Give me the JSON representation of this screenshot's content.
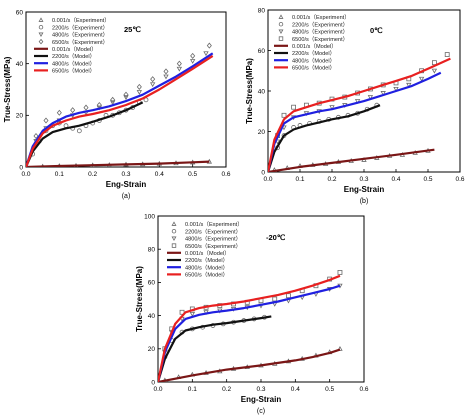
{
  "chart_data": [
    {
      "type": "line",
      "panel_label": "(a)",
      "temperature_label": "25℃",
      "xlabel": "Eng-Strain",
      "ylabel": "True-Stress(MPa)",
      "xlim": [
        0.0,
        0.6
      ],
      "ylim": [
        0,
        60
      ],
      "xticks": [
        "0.0",
        "0.1",
        "0.2",
        "0.3",
        "0.4",
        "0.5",
        "0.6"
      ],
      "yticks": [
        "0",
        "20",
        "40",
        "60"
      ],
      "legend": "top-left",
      "series": [
        {
          "name": "0.001/s（Experiment）",
          "kind": "experiment",
          "marker": "triangle-up",
          "color": "#6a6a6a",
          "x": [
            0.0,
            0.05,
            0.1,
            0.15,
            0.2,
            0.25,
            0.3,
            0.35,
            0.4,
            0.45,
            0.5,
            0.55
          ],
          "y": [
            0.0,
            0.2,
            0.4,
            0.5,
            0.7,
            0.8,
            1.0,
            1.1,
            1.3,
            1.5,
            1.8,
            2.1
          ]
        },
        {
          "name": "2200/s（Experiment）",
          "kind": "experiment",
          "marker": "circle",
          "color": "#6a6a6a",
          "x": [
            0.02,
            0.04,
            0.06,
            0.08,
            0.1,
            0.12,
            0.14,
            0.16,
            0.18,
            0.2,
            0.22,
            0.24,
            0.26,
            0.28,
            0.3,
            0.32,
            0.34,
            0.36
          ],
          "y": [
            5,
            10,
            14,
            16,
            17,
            16,
            15,
            14,
            16,
            17,
            18,
            20,
            20,
            21,
            22,
            23,
            25,
            26
          ]
        },
        {
          "name": "4800/s（Experiment）",
          "kind": "experiment",
          "marker": "triangle-down",
          "color": "#6a6a6a",
          "x": [
            0.03,
            0.06,
            0.1,
            0.14,
            0.18,
            0.22,
            0.26,
            0.3,
            0.34,
            0.38,
            0.42,
            0.46,
            0.5,
            0.54
          ],
          "y": [
            10,
            15,
            18,
            20,
            21,
            23,
            25,
            27,
            29,
            32,
            35,
            38,
            41,
            44
          ]
        },
        {
          "name": "6500/s（Experiment）",
          "kind": "experiment",
          "marker": "diamond",
          "color": "#6a6a6a",
          "x": [
            0.03,
            0.06,
            0.1,
            0.14,
            0.18,
            0.22,
            0.26,
            0.3,
            0.34,
            0.38,
            0.42,
            0.46,
            0.5,
            0.55
          ],
          "y": [
            12,
            18,
            21,
            22,
            23,
            24,
            26,
            28,
            31,
            34,
            37,
            40,
            43,
            47
          ]
        },
        {
          "name": "0.001/s（Model）",
          "kind": "model",
          "color": "#7a1616",
          "x": [
            0.0,
            0.1,
            0.2,
            0.3,
            0.4,
            0.5,
            0.55
          ],
          "y": [
            0.0,
            0.4,
            0.7,
            1.0,
            1.3,
            1.8,
            2.1
          ]
        },
        {
          "name": "2200/s（Model）",
          "kind": "model",
          "color": "#111111",
          "x": [
            0.0,
            0.02,
            0.05,
            0.08,
            0.12,
            0.16,
            0.2,
            0.25,
            0.3,
            0.35
          ],
          "y": [
            0,
            6,
            11,
            13.5,
            15,
            16,
            17.5,
            19.5,
            22,
            25
          ]
        },
        {
          "name": "4800/s（Model）",
          "kind": "model",
          "color": "#2020e0",
          "x": [
            0.0,
            0.02,
            0.05,
            0.08,
            0.12,
            0.16,
            0.2,
            0.25,
            0.3,
            0.35,
            0.4,
            0.45,
            0.5,
            0.56
          ],
          "y": [
            0,
            8,
            14,
            17,
            19.5,
            21,
            22,
            23.5,
            25.5,
            28,
            31.5,
            35,
            39,
            44
          ]
        },
        {
          "name": "6500/s（Model）",
          "kind": "model",
          "color": "#e82020",
          "x": [
            0.0,
            0.02,
            0.05,
            0.08,
            0.12,
            0.16,
            0.2,
            0.25,
            0.3,
            0.35,
            0.4,
            0.45,
            0.5,
            0.56
          ],
          "y": [
            0,
            7,
            13,
            16,
            18,
            19.5,
            20.5,
            22,
            24,
            26.5,
            30,
            34,
            38,
            43
          ]
        }
      ]
    },
    {
      "type": "line",
      "panel_label": "(b)",
      "temperature_label": "0℃",
      "xlabel": "Eng-Strain",
      "ylabel": "True-Stress(MPa)",
      "xlim": [
        0.0,
        0.6
      ],
      "ylim": [
        0,
        80
      ],
      "xticks": [
        "0.0",
        "0.1",
        "0.2",
        "0.3",
        "0.4",
        "0.5",
        "0.6"
      ],
      "yticks": [
        "0",
        "20",
        "40",
        "60",
        "80"
      ],
      "legend": "top-left",
      "series": [
        {
          "name": "0.001/s（Experiment）",
          "kind": "experiment",
          "marker": "triangle-up",
          "color": "#6a6a6a",
          "x": [
            0.02,
            0.06,
            0.1,
            0.14,
            0.18,
            0.22,
            0.26,
            0.3,
            0.34,
            0.38,
            0.42,
            0.46,
            0.5
          ],
          "y": [
            1,
            2,
            3,
            3.5,
            4,
            5,
            5.5,
            6,
            7,
            8,
            8.5,
            9.5,
            10.5
          ]
        },
        {
          "name": "2200/s（Experiment）",
          "kind": "experiment",
          "marker": "circle",
          "color": "#6a6a6a",
          "x": [
            0.03,
            0.05,
            0.08,
            0.1,
            0.13,
            0.16,
            0.19,
            0.22,
            0.25,
            0.28,
            0.31,
            0.34
          ],
          "y": [
            12,
            18,
            22,
            23,
            24,
            25,
            26,
            27,
            28,
            29,
            31,
            33
          ]
        },
        {
          "name": "4800/s（Experiment）",
          "kind": "experiment",
          "marker": "triangle-down",
          "color": "#6a6a6a",
          "x": [
            0.03,
            0.05,
            0.08,
            0.12,
            0.16,
            0.2,
            0.24,
            0.28,
            0.32,
            0.36,
            0.4,
            0.44,
            0.48,
            0.52
          ],
          "y": [
            15,
            22,
            27,
            29,
            30,
            32,
            33,
            35,
            37,
            39,
            41,
            43,
            46,
            50
          ]
        },
        {
          "name": "6500/s（Experiment）",
          "kind": "experiment",
          "marker": "square",
          "color": "#6a6a6a",
          "x": [
            0.03,
            0.05,
            0.08,
            0.12,
            0.16,
            0.2,
            0.24,
            0.28,
            0.32,
            0.36,
            0.4,
            0.44,
            0.48,
            0.52,
            0.56
          ],
          "y": [
            18,
            28,
            32,
            33,
            34,
            36,
            37,
            39,
            41,
            43,
            44,
            46,
            50,
            54,
            58
          ]
        },
        {
          "name": "0.001/s（Model）",
          "kind": "model",
          "color": "#7a1616",
          "x": [
            0.0,
            0.1,
            0.2,
            0.3,
            0.4,
            0.52
          ],
          "y": [
            0,
            2.5,
            4.5,
            6.5,
            8.5,
            11
          ]
        },
        {
          "name": "2200/s（Model）",
          "kind": "model",
          "color": "#111111",
          "x": [
            0.0,
            0.02,
            0.05,
            0.08,
            0.12,
            0.16,
            0.2,
            0.25,
            0.3,
            0.35
          ],
          "y": [
            0,
            10,
            18,
            21,
            23,
            24.5,
            26,
            27.5,
            30,
            33
          ]
        },
        {
          "name": "4800/s（Model）",
          "kind": "model",
          "color": "#2020e0",
          "x": [
            0.0,
            0.02,
            0.05,
            0.08,
            0.12,
            0.16,
            0.2,
            0.25,
            0.3,
            0.35,
            0.4,
            0.45,
            0.5,
            0.54
          ],
          "y": [
            0,
            14,
            24,
            27,
            28.5,
            30,
            31,
            33,
            35,
            37.5,
            40,
            42.5,
            46,
            49
          ]
        },
        {
          "name": "6500/s（Model）",
          "kind": "model",
          "color": "#e82020",
          "x": [
            0.0,
            0.02,
            0.05,
            0.08,
            0.12,
            0.16,
            0.2,
            0.25,
            0.3,
            0.35,
            0.4,
            0.45,
            0.5,
            0.57
          ],
          "y": [
            0,
            16,
            26,
            30,
            32,
            34,
            35.5,
            37.5,
            40,
            42.5,
            45,
            47.5,
            51,
            56
          ]
        }
      ]
    },
    {
      "type": "line",
      "panel_label": "(c)",
      "temperature_label": "-20℃",
      "xlabel": "Eng-Strain",
      "ylabel": "True-Stress(MPa)",
      "xlim": [
        0.0,
        0.6
      ],
      "ylim": [
        0,
        100
      ],
      "xticks": [
        "0.0",
        "0.1",
        "0.2",
        "0.3",
        "0.4",
        "0.5",
        "0.6"
      ],
      "yticks": [
        "0",
        "20",
        "40",
        "60",
        "80",
        "100"
      ],
      "legend": "top-left",
      "series": [
        {
          "name": "0.001/s（Experiment）",
          "kind": "experiment",
          "marker": "triangle-up",
          "color": "#6a6a6a",
          "x": [
            0.02,
            0.06,
            0.1,
            0.14,
            0.18,
            0.22,
            0.26,
            0.3,
            0.34,
            0.38,
            0.42,
            0.46,
            0.5,
            0.53
          ],
          "y": [
            1,
            3,
            4.5,
            5.5,
            6.5,
            8,
            9,
            10,
            11,
            12.5,
            14,
            16,
            18,
            20
          ]
        },
        {
          "name": "2200/s（Experiment）",
          "kind": "experiment",
          "marker": "circle",
          "color": "#6a6a6a",
          "x": [
            0.02,
            0.04,
            0.07,
            0.1,
            0.13,
            0.16,
            0.19,
            0.22,
            0.25,
            0.28,
            0.31
          ],
          "y": [
            15,
            25,
            30,
            32,
            33,
            34,
            35,
            36,
            37,
            38,
            39
          ]
        },
        {
          "name": "4800/s（Experiment）",
          "kind": "experiment",
          "marker": "triangle-down",
          "color": "#6a6a6a",
          "x": [
            0.02,
            0.04,
            0.07,
            0.1,
            0.14,
            0.18,
            0.22,
            0.26,
            0.3,
            0.34,
            0.38,
            0.42,
            0.46,
            0.5,
            0.53
          ],
          "y": [
            18,
            30,
            38,
            41,
            42,
            43,
            44,
            45,
            46,
            47,
            49,
            51,
            53,
            56,
            58
          ]
        },
        {
          "name": "6500/s（Experiment）",
          "kind": "experiment",
          "marker": "square",
          "color": "#6a6a6a",
          "x": [
            0.02,
            0.04,
            0.07,
            0.1,
            0.14,
            0.18,
            0.22,
            0.26,
            0.3,
            0.34,
            0.38,
            0.42,
            0.46,
            0.5,
            0.53
          ],
          "y": [
            20,
            32,
            42,
            44,
            45,
            46,
            47,
            48,
            49,
            50,
            52,
            55,
            58,
            62,
            66
          ]
        },
        {
          "name": "0.001/s（Model）",
          "kind": "model",
          "color": "#7a1616",
          "x": [
            0.0,
            0.1,
            0.2,
            0.3,
            0.4,
            0.45,
            0.5,
            0.53
          ],
          "y": [
            0,
            4,
            7.5,
            10,
            13,
            15,
            17.5,
            19.5
          ]
        },
        {
          "name": "2200/s（Model）",
          "kind": "model",
          "color": "#111111",
          "x": [
            0.0,
            0.02,
            0.05,
            0.08,
            0.12,
            0.16,
            0.2,
            0.25,
            0.3,
            0.33
          ],
          "y": [
            0,
            14,
            26,
            31,
            33,
            34.5,
            35.5,
            37,
            38.5,
            39.5
          ]
        },
        {
          "name": "4800/s（Model）",
          "kind": "model",
          "color": "#2020e0",
          "x": [
            0.0,
            0.02,
            0.05,
            0.08,
            0.12,
            0.16,
            0.2,
            0.25,
            0.3,
            0.35,
            0.4,
            0.45,
            0.5,
            0.53
          ],
          "y": [
            0,
            18,
            32,
            38,
            40.5,
            42,
            43,
            44.5,
            46.5,
            48.5,
            51,
            53.5,
            56,
            58
          ]
        },
        {
          "name": "6500/s（Model）",
          "kind": "model",
          "color": "#e82020",
          "x": [
            0.0,
            0.02,
            0.05,
            0.08,
            0.12,
            0.16,
            0.2,
            0.25,
            0.3,
            0.35,
            0.4,
            0.45,
            0.5,
            0.53
          ],
          "y": [
            0,
            20,
            35,
            42,
            44.5,
            46,
            47,
            48.5,
            50.5,
            52.5,
            55,
            58,
            61.5,
            64
          ]
        }
      ]
    }
  ]
}
